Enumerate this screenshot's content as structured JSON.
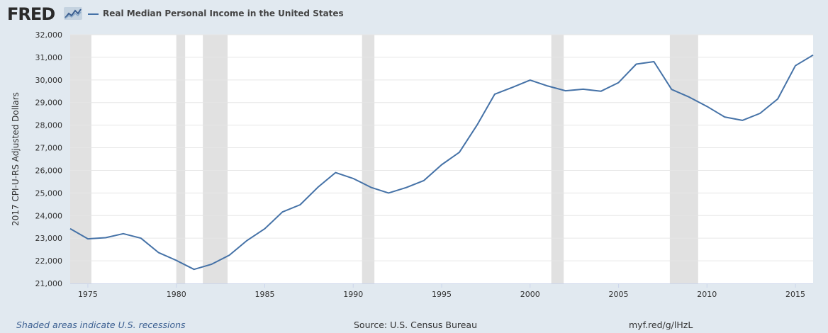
{
  "header": {
    "logo_text": "FRED",
    "logo_icon": "line-graph-icon",
    "title": "Real Median Personal Income in the United States"
  },
  "footer": {
    "recession_note": "Shaded areas indicate U.S. recessions",
    "source": "Source: U.S. Census Bureau",
    "url": "myf.red/g/lHzL"
  },
  "colors": {
    "line": "#4572a7",
    "recession": "#e1e1e1",
    "plot_bg": "#ffffff",
    "page_bg": "#e1e9f0",
    "grid": "#e6e6e6"
  },
  "chart_data": {
    "type": "line",
    "title": "Real Median Personal Income in the United States",
    "ylabel": "2017 CPI-U-RS Adjusted Dollars",
    "xlabel": "",
    "xlim": [
      1974,
      2016
    ],
    "ylim": [
      21000,
      32000
    ],
    "grid": true,
    "legend": "top-left",
    "x_ticks": [
      1975,
      1980,
      1985,
      1990,
      1995,
      2000,
      2005,
      2010,
      2015
    ],
    "y_ticks": [
      21000,
      22000,
      23000,
      24000,
      25000,
      26000,
      27000,
      28000,
      29000,
      30000,
      31000,
      32000
    ],
    "y_tick_labels": [
      "21,000",
      "22,000",
      "23,000",
      "24,000",
      "25,000",
      "26,000",
      "27,000",
      "28,000",
      "29,000",
      "30,000",
      "31,000",
      "32,000"
    ],
    "recessions": [
      [
        1974.0,
        1975.2
      ],
      [
        1980.0,
        1980.5
      ],
      [
        1981.5,
        1982.9
      ],
      [
        1990.5,
        1991.2
      ],
      [
        2001.2,
        2001.9
      ],
      [
        2007.9,
        2009.5
      ]
    ],
    "series": [
      {
        "name": "Real Median Personal Income in the United States",
        "x": [
          1974,
          1975,
          1976,
          1977,
          1978,
          1979,
          1980,
          1981,
          1982,
          1983,
          1984,
          1985,
          1986,
          1987,
          1988,
          1989,
          1990,
          1991,
          1992,
          1993,
          1994,
          1995,
          1996,
          1997,
          1998,
          1999,
          2000,
          2001,
          2002,
          2003,
          2004,
          2005,
          2006,
          2007,
          2008,
          2009,
          2010,
          2011,
          2012,
          2013,
          2014,
          2015,
          2016
        ],
        "values": [
          23420,
          22970,
          23020,
          23200,
          23000,
          22360,
          22020,
          21620,
          21850,
          22250,
          22900,
          23420,
          24160,
          24480,
          25250,
          25900,
          25640,
          25250,
          25000,
          25240,
          25550,
          26250,
          26800,
          28000,
          29370,
          29670,
          29990,
          29730,
          29520,
          29590,
          29500,
          29880,
          30700,
          30810,
          29580,
          29240,
          28830,
          28360,
          28210,
          28520,
          29160,
          30630,
          31100
        ]
      }
    ]
  }
}
